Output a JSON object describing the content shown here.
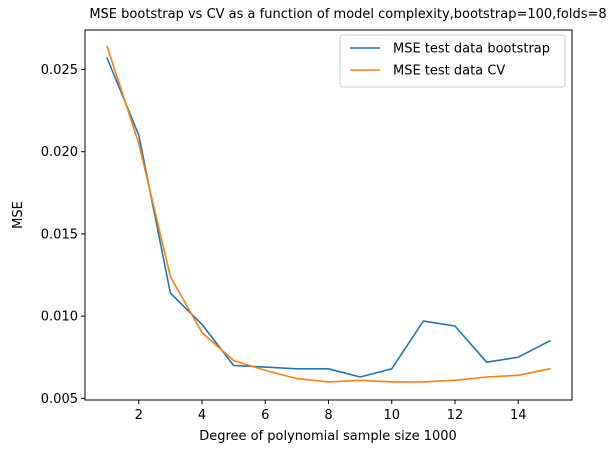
{
  "chart_data": {
    "type": "line",
    "title": "MSE bootstrap vs CV as a function of model complexity,bootstrap=100,folds=8",
    "xlabel": "Degree of polynomial sample size 1000",
    "ylabel": "MSE",
    "xlim": [
      0.3,
      15.7
    ],
    "ylim": [
      0.0049,
      0.0274
    ],
    "xticks": [
      2,
      4,
      6,
      8,
      10,
      12,
      14
    ],
    "xtick_labels": [
      "2",
      "4",
      "6",
      "8",
      "10",
      "12",
      "14"
    ],
    "yticks": [
      0.005,
      0.01,
      0.015,
      0.02,
      0.025
    ],
    "ytick_labels": [
      "0.005",
      "0.010",
      "0.015",
      "0.020",
      "0.025"
    ],
    "grid": false,
    "legend_position": "top-right",
    "x": [
      1,
      2,
      3,
      4,
      5,
      6,
      7,
      8,
      9,
      10,
      11,
      12,
      13,
      14,
      15
    ],
    "series": [
      {
        "name": "MSE test data bootstrap",
        "color": "#1f77b4",
        "values": [
          0.0257,
          0.021,
          0.0114,
          0.0095,
          0.007,
          0.0069,
          0.0068,
          0.0068,
          0.0063,
          0.0068,
          0.0097,
          0.0094,
          0.0072,
          0.0075,
          0.0085
        ]
      },
      {
        "name": "MSE test data CV",
        "color": "#ff7f0e",
        "values": [
          0.0264,
          0.0205,
          0.0124,
          0.009,
          0.0073,
          0.0067,
          0.0062,
          0.006,
          0.0061,
          0.006,
          0.006,
          0.0061,
          0.0063,
          0.0064,
          0.0068
        ]
      }
    ]
  }
}
